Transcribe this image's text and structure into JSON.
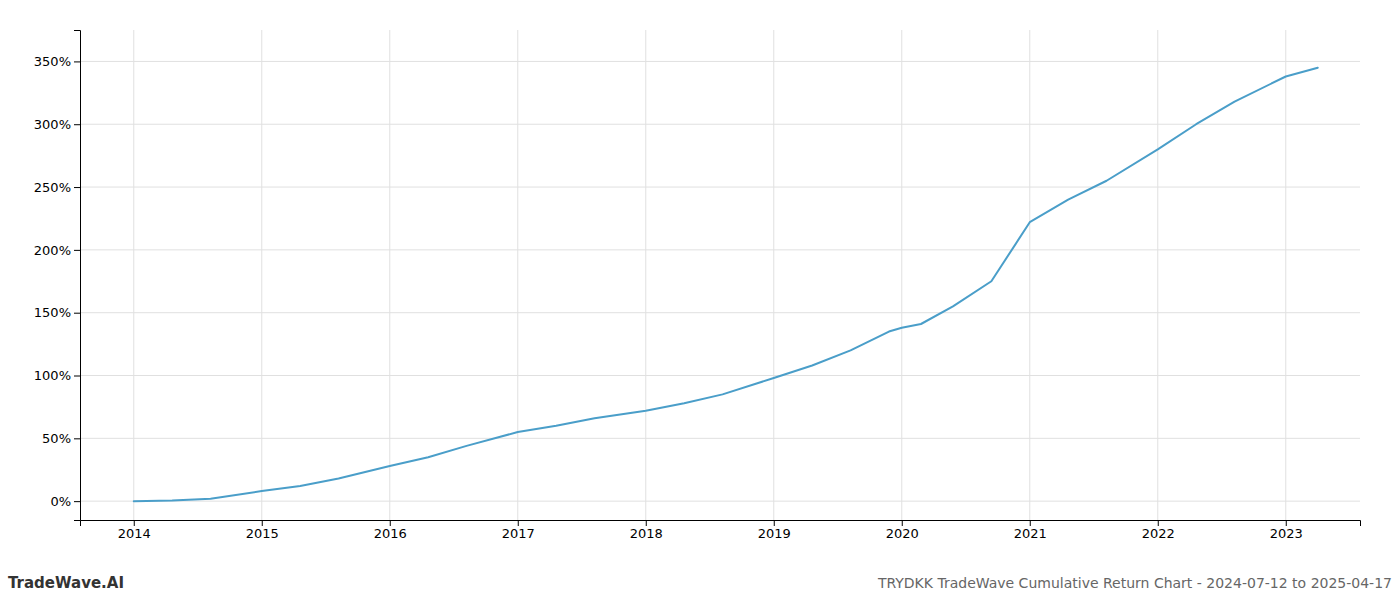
{
  "chart_data": {
    "type": "line",
    "title": "TRYDKK TradeWave Cumulative Return Chart - 2024-07-12 to 2025-04-17",
    "annotations": [
      "TradeWave.AI"
    ],
    "color": "#4a9ec9",
    "x": [
      2014.0,
      2014.3,
      2014.6,
      2015.0,
      2015.3,
      2015.6,
      2016.0,
      2016.3,
      2016.6,
      2017.0,
      2017.3,
      2017.6,
      2018.0,
      2018.3,
      2018.6,
      2019.0,
      2019.3,
      2019.6,
      2019.9,
      2020.0,
      2020.15,
      2020.4,
      2020.7,
      2021.0,
      2021.3,
      2021.6,
      2022.0,
      2022.3,
      2022.6,
      2023.0,
      2023.25
    ],
    "values": [
      0,
      0.5,
      2,
      8,
      12,
      18,
      28,
      35,
      44,
      55,
      60,
      66,
      72,
      78,
      85,
      98,
      108,
      120,
      135,
      138,
      141,
      155,
      175,
      222,
      240,
      255,
      280,
      300,
      318,
      338,
      345
    ],
    "xlim": [
      2013.58,
      2023.58
    ],
    "ylim": [
      -15,
      375
    ],
    "xticks": [
      2014,
      2015,
      2016,
      2017,
      2018,
      2019,
      2020,
      2021,
      2022,
      2023
    ],
    "yticks": [
      {
        "value": 0,
        "label": "0%"
      },
      {
        "value": 50,
        "label": "50%"
      },
      {
        "value": 100,
        "label": "100%"
      },
      {
        "value": 150,
        "label": "150%"
      },
      {
        "value": 200,
        "label": "200%"
      },
      {
        "value": 250,
        "label": "250%"
      },
      {
        "value": 300,
        "label": "300%"
      },
      {
        "value": 350,
        "label": "350%"
      }
    ],
    "grid": true
  }
}
